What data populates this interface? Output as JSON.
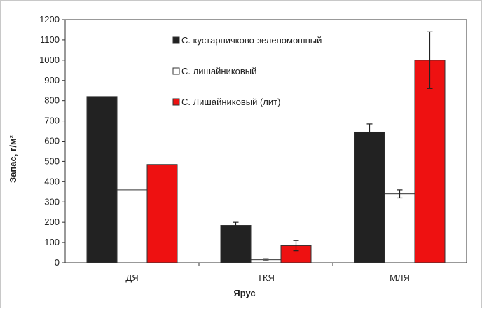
{
  "chart_data": {
    "type": "bar",
    "title": "",
    "xlabel": "Ярус",
    "ylabel": "Запас, г/м²",
    "categories": [
      "ДЯ",
      "ТКЯ",
      "МЛЯ"
    ],
    "ylim": [
      0,
      1200
    ],
    "yticks": [
      "0",
      "100",
      "200",
      "300",
      "400",
      "500",
      "600",
      "700",
      "800",
      "900",
      "1000",
      "1100",
      "1200"
    ],
    "legend_position": "top-right",
    "series": [
      {
        "name": "С. кустарничково-зеленомошный",
        "color": "#222222",
        "values": [
          820,
          185,
          645
        ],
        "errors": [
          0,
          15,
          40
        ]
      },
      {
        "name": "С. лишайниковый",
        "color": "#ffffff",
        "values": [
          360,
          15,
          340
        ],
        "errors": [
          0,
          5,
          20
        ]
      },
      {
        "name": "С. Лишайниковый (лит)",
        "color": "#ee1111",
        "values": [
          485,
          85,
          1000
        ],
        "errors": [
          0,
          25,
          140
        ]
      }
    ]
  }
}
